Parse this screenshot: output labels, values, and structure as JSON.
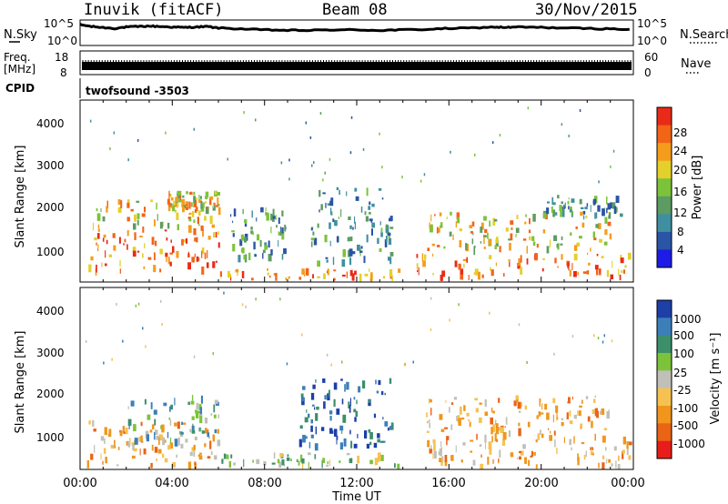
{
  "header": {
    "title": "Inuvik (fitACF)",
    "beam": "Beam 08",
    "date": "30/Nov/2015"
  },
  "labels": {
    "nsky": "N.Sky",
    "nsearch": "N.Search",
    "freq_line1": "Freq.",
    "freq_line2": "[MHz]",
    "nave": "Nave",
    "cpid": "CPID",
    "cpid_value": "twofsound -3503",
    "slant_range": "Slant Range [km]",
    "time_axis": "Time UT",
    "power_label": "Power [dB]",
    "velocity_label": "Velocity [m s⁻¹]"
  },
  "chart_data": [
    {
      "type": "line",
      "name": "noise",
      "ylabel": "N.Sky",
      "y2label": "N.Search",
      "ytick_labels": [
        "10^5",
        "10^0"
      ],
      "y2tick_labels": [
        "10^5",
        "10^0"
      ],
      "x_hours": [
        0,
        0.5,
        1,
        1.5,
        2,
        2.5,
        3,
        3.5,
        4,
        4.5,
        5,
        5.5,
        6,
        7,
        8,
        9,
        10,
        11,
        12,
        13,
        14,
        15,
        16,
        17,
        18,
        18.5,
        19,
        20,
        21,
        22,
        23,
        24
      ],
      "values_log": [
        4.4,
        4.0,
        3.8,
        3.6,
        3.9,
        4.0,
        4.1,
        4.0,
        3.9,
        3.8,
        3.9,
        4.0,
        3.7,
        3.5,
        3.3,
        3.2,
        3.2,
        3.3,
        3.3,
        3.2,
        3.3,
        3.4,
        3.6,
        3.7,
        3.9,
        3.8,
        3.9,
        3.8,
        3.7,
        3.6,
        3.5,
        3.4
      ]
    },
    {
      "type": "bar",
      "name": "freq-nave",
      "ylabel": "Freq. [MHz]",
      "ytick_labels": [
        "18",
        "8"
      ],
      "y2tick_labels": [
        "60",
        "0"
      ],
      "freq_mhz": [
        10.8,
        11.8
      ],
      "nave_band": [
        18,
        26
      ]
    },
    {
      "type": "heatmap",
      "name": "power",
      "ylabel": "Slant Range [km]",
      "ytick_labels": [
        "1000",
        "2000",
        "3000",
        "4000"
      ],
      "xtick_labels": [
        "00:00",
        "04:00",
        "08:00",
        "12:00",
        "16:00",
        "20:00",
        "00:00"
      ],
      "xlim": [
        0,
        24
      ],
      "ylim": [
        180,
        4600
      ],
      "colorbar_label": "Power [dB]",
      "colorbar_ticks": [
        "4",
        "8",
        "12",
        "16",
        "20",
        "24",
        "28"
      ],
      "colorbar_colors": [
        "#1c1ce6",
        "#2a54a6",
        "#3f8fa0",
        "#5c9c62",
        "#7cc33a",
        "#e4d02a",
        "#f59c1c",
        "#f26416",
        "#ea2a18"
      ],
      "patches": [
        {
          "t": [
            0.2,
            6.0
          ],
          "r": [
            500,
            1500
          ],
          "level": "high"
        },
        {
          "t": [
            0.5,
            5.8
          ],
          "r": [
            1500,
            2200
          ],
          "level": "mid"
        },
        {
          "t": [
            3.8,
            6.0
          ],
          "r": [
            2000,
            2400
          ],
          "level": "mid"
        },
        {
          "t": [
            6.0,
            14.0
          ],
          "r": [
            220,
            520
          ],
          "level": "high"
        },
        {
          "t": [
            6.5,
            9.0
          ],
          "r": [
            800,
            2000
          ],
          "level": "low"
        },
        {
          "t": [
            10.0,
            13.5
          ],
          "r": [
            700,
            2500
          ],
          "level": "low"
        },
        {
          "t": [
            14.5,
            24.0
          ],
          "r": [
            350,
            900
          ],
          "level": "high"
        },
        {
          "t": [
            15.0,
            23.0
          ],
          "r": [
            1000,
            1900
          ],
          "level": "mid"
        },
        {
          "t": [
            20.0,
            23.5
          ],
          "r": [
            1800,
            2300
          ],
          "level": "low"
        }
      ]
    },
    {
      "type": "heatmap",
      "name": "velocity",
      "ylabel": "Slant Range [km]",
      "ytick_labels": [
        "1000",
        "2000",
        "3000",
        "4000"
      ],
      "xtick_labels": [
        "00:00",
        "04:00",
        "08:00",
        "12:00",
        "16:00",
        "20:00",
        "00:00"
      ],
      "xlim": [
        0,
        24
      ],
      "ylim": [
        180,
        4600
      ],
      "xlabel": "Time UT",
      "colorbar_label": "Velocity [m s⁻¹]",
      "colorbar_ticks": [
        "1000",
        "500",
        "100",
        "25",
        "-25",
        "-100",
        "-500",
        "-1000"
      ],
      "colorbar_colors": [
        "#1c3fa8",
        "#3c7fb8",
        "#3c8f6a",
        "#7cc33a",
        "#c0c0b8",
        "#f5c252",
        "#f0961c",
        "#ea6416",
        "#e81c18"
      ],
      "patches": [
        {
          "t": [
            0.2,
            6.0
          ],
          "r": [
            300,
            1400
          ],
          "level": "away"
        },
        {
          "t": [
            2.0,
            6.0
          ],
          "r": [
            900,
            2000
          ],
          "level": "toward"
        },
        {
          "t": [
            6.0,
            14.0
          ],
          "r": [
            250,
            600
          ],
          "level": "slow"
        },
        {
          "t": [
            9.5,
            13.5
          ],
          "r": [
            800,
            2400
          ],
          "level": "toward-fast"
        },
        {
          "t": [
            14.5,
            24.0
          ],
          "r": [
            300,
            1000
          ],
          "level": "away"
        },
        {
          "t": [
            15.0,
            23.0
          ],
          "r": [
            1000,
            2000
          ],
          "level": "away"
        }
      ]
    }
  ]
}
